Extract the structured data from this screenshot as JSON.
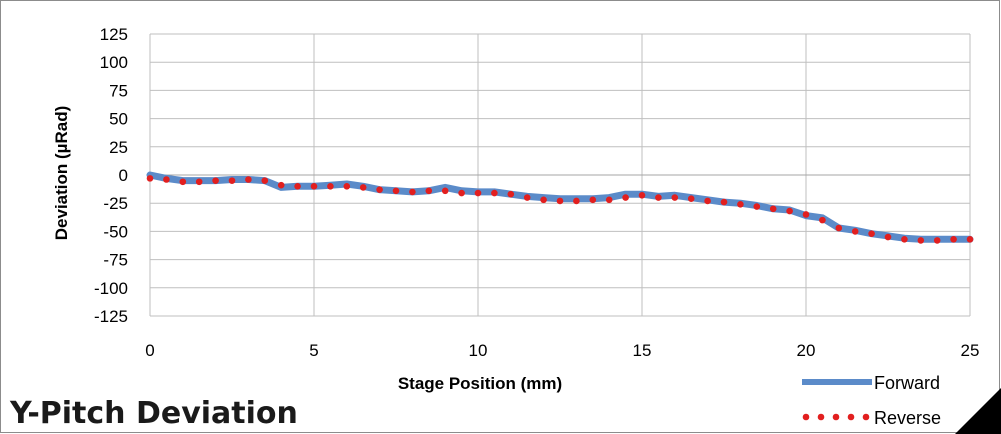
{
  "page_title": "Y-Pitch Deviation",
  "colors": {
    "forward": "#5B8BC9",
    "reverse": "#E21F1F",
    "grid": "#bfbfbf",
    "axis_text": "#000000",
    "frame": "#8c8c8c",
    "stamp": "#000000"
  },
  "chart_data": {
    "type": "line",
    "title": "",
    "xlabel": "Stage Position (mm)",
    "ylabel": "Deviation (µRad)",
    "xlim": [
      0,
      25
    ],
    "ylim": [
      -125,
      125
    ],
    "x_ticks": [
      0,
      5,
      10,
      15,
      20,
      25
    ],
    "y_ticks": [
      125,
      100,
      75,
      50,
      25,
      0,
      -25,
      -50,
      -75,
      -100,
      -125
    ],
    "grid": true,
    "legend_position": "bottom-right",
    "series": [
      {
        "name": "Forward",
        "style": "solid",
        "points": [
          [
            0,
            0
          ],
          [
            0.5,
            -3
          ],
          [
            1,
            -5
          ],
          [
            1.5,
            -5
          ],
          [
            2,
            -5
          ],
          [
            2.5,
            -4
          ],
          [
            3,
            -4
          ],
          [
            3.5,
            -5
          ],
          [
            4,
            -11
          ],
          [
            4.5,
            -10
          ],
          [
            5,
            -10
          ],
          [
            5.5,
            -9
          ],
          [
            6,
            -8
          ],
          [
            6.5,
            -10
          ],
          [
            7,
            -13
          ],
          [
            7.5,
            -14
          ],
          [
            8,
            -15
          ],
          [
            8.5,
            -14
          ],
          [
            9,
            -11
          ],
          [
            9.5,
            -14
          ],
          [
            10,
            -15
          ],
          [
            10.5,
            -15
          ],
          [
            11,
            -17
          ],
          [
            11.5,
            -19
          ],
          [
            12,
            -20
          ],
          [
            12.5,
            -21
          ],
          [
            13,
            -21
          ],
          [
            13.5,
            -21
          ],
          [
            14,
            -20
          ],
          [
            14.5,
            -17
          ],
          [
            15,
            -17
          ],
          [
            15.5,
            -19
          ],
          [
            16,
            -18
          ],
          [
            16.5,
            -20
          ],
          [
            17,
            -22
          ],
          [
            17.5,
            -24
          ],
          [
            18,
            -25
          ],
          [
            18.5,
            -27
          ],
          [
            19,
            -30
          ],
          [
            19.5,
            -31
          ],
          [
            20,
            -36
          ],
          [
            20.5,
            -38
          ],
          [
            21,
            -47
          ],
          [
            21.5,
            -49
          ],
          [
            22,
            -52
          ],
          [
            22.5,
            -54
          ],
          [
            23,
            -56
          ],
          [
            23.5,
            -57
          ],
          [
            24,
            -57
          ],
          [
            24.5,
            -57
          ],
          [
            25,
            -57
          ]
        ]
      },
      {
        "name": "Reverse",
        "style": "dotted",
        "points": [
          [
            0,
            -3
          ],
          [
            0.5,
            -4
          ],
          [
            1,
            -6
          ],
          [
            1.5,
            -6
          ],
          [
            2,
            -5
          ],
          [
            2.5,
            -5
          ],
          [
            3,
            -4
          ],
          [
            3.5,
            -5
          ],
          [
            4,
            -9
          ],
          [
            4.5,
            -10
          ],
          [
            5,
            -10
          ],
          [
            5.5,
            -10
          ],
          [
            6,
            -10
          ],
          [
            6.5,
            -11
          ],
          [
            7,
            -13
          ],
          [
            7.5,
            -14
          ],
          [
            8,
            -15
          ],
          [
            8.5,
            -14
          ],
          [
            9,
            -14
          ],
          [
            9.5,
            -16
          ],
          [
            10,
            -16
          ],
          [
            10.5,
            -16
          ],
          [
            11,
            -17
          ],
          [
            11.5,
            -20
          ],
          [
            12,
            -22
          ],
          [
            12.5,
            -23
          ],
          [
            13,
            -23
          ],
          [
            13.5,
            -22
          ],
          [
            14,
            -22
          ],
          [
            14.5,
            -20
          ],
          [
            15,
            -18
          ],
          [
            15.5,
            -20
          ],
          [
            16,
            -20
          ],
          [
            16.5,
            -21
          ],
          [
            17,
            -23
          ],
          [
            17.5,
            -24
          ],
          [
            18,
            -26
          ],
          [
            18.5,
            -28
          ],
          [
            19,
            -30
          ],
          [
            19.5,
            -32
          ],
          [
            20,
            -35
          ],
          [
            20.5,
            -40
          ],
          [
            21,
            -47
          ],
          [
            21.5,
            -50
          ],
          [
            22,
            -52
          ],
          [
            22.5,
            -55
          ],
          [
            23,
            -57
          ],
          [
            23.5,
            -58
          ],
          [
            24,
            -58
          ],
          [
            24.5,
            -57
          ],
          [
            25,
            -57
          ]
        ]
      }
    ]
  }
}
